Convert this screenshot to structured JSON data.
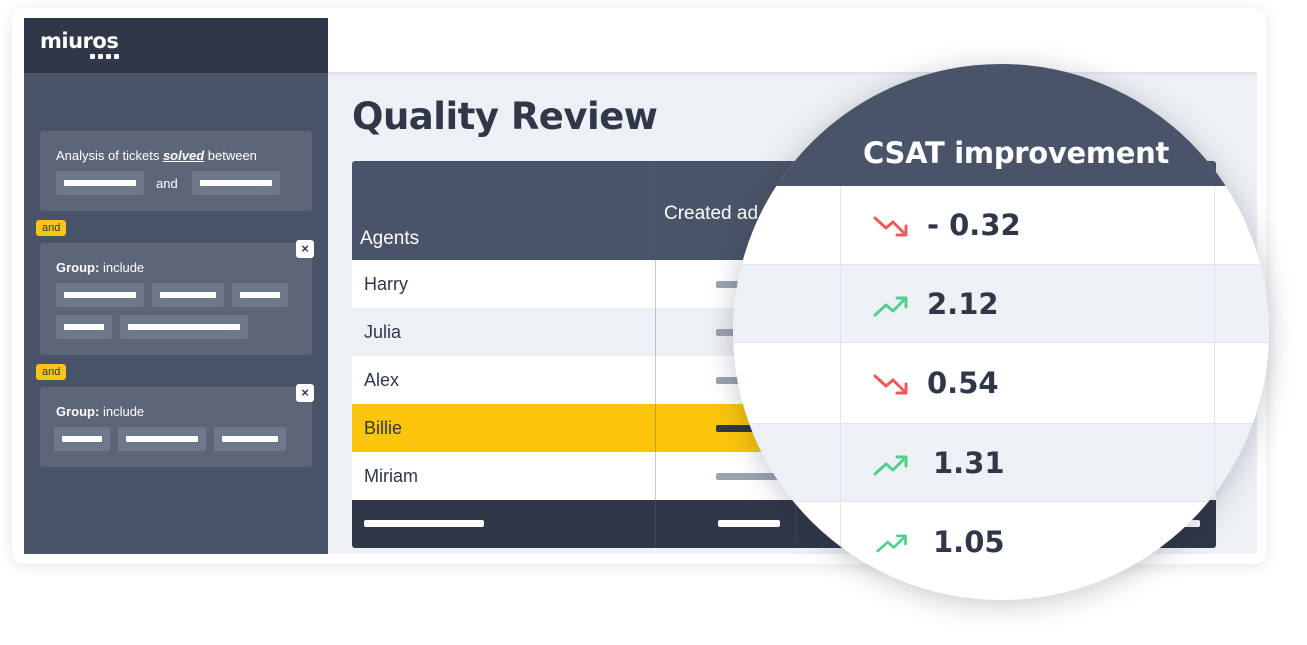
{
  "app": {
    "logo": "miuros"
  },
  "filters": {
    "date_range": {
      "prefix": "Analysis of tickets",
      "emphasis": "solved",
      "suffix": "between",
      "connector": "and"
    },
    "and_badge": "and",
    "group1": {
      "label": "Group:",
      "text": "include"
    },
    "group2": {
      "label": "Group:",
      "text": "include"
    },
    "close_glyph": "×"
  },
  "page": {
    "title": "Quality Review"
  },
  "table": {
    "columns": {
      "agents": "Agents",
      "created": "Created ad"
    },
    "rows": [
      {
        "name": "Harry"
      },
      {
        "name": "Julia"
      },
      {
        "name": "Alex"
      },
      {
        "name": "Billie"
      },
      {
        "name": "Miriam"
      }
    ]
  },
  "magnifier": {
    "title": "CSAT improvement",
    "rows": [
      {
        "value": "- 0.32",
        "trend": "down"
      },
      {
        "value": "2.12",
        "trend": "up"
      },
      {
        "value": "0.54",
        "trend": "down"
      },
      {
        "value": "1.31",
        "trend": "up"
      },
      {
        "value": "1.05",
        "trend": "up"
      }
    ]
  },
  "colors": {
    "accent": "#fbc50c",
    "sidebar": "#4a5468",
    "dark": "#2f3748",
    "up": "#4fd18b",
    "down": "#ee5a5a"
  }
}
